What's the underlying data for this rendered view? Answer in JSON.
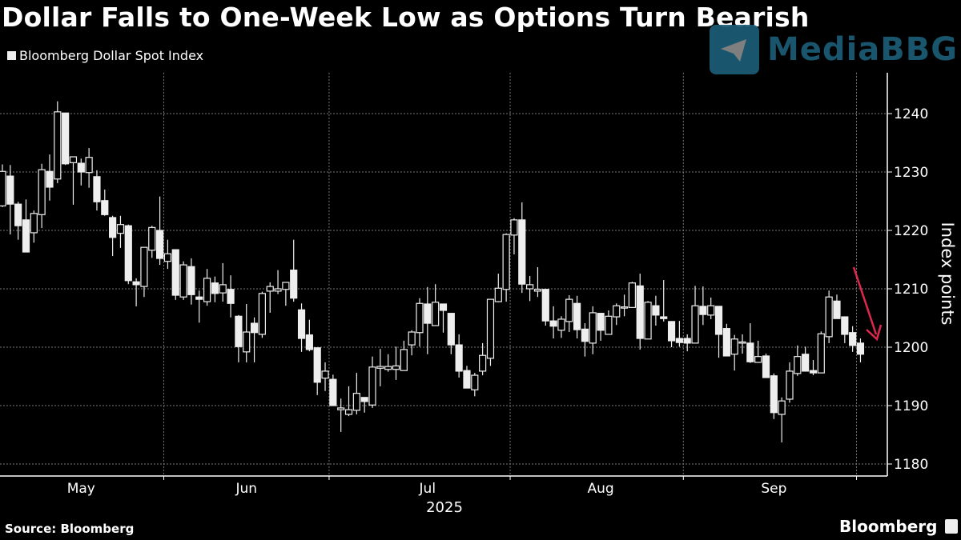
{
  "header": {
    "title": "Dollar Falls to One-Week Low as Options Turn Bearish",
    "legend_label": "Bloomberg Dollar Spot Index"
  },
  "footer": {
    "source": "Source: Bloomberg",
    "brand": "Bloomberg"
  },
  "watermark": "MediaBBG",
  "colors": {
    "background": "#000000",
    "candle": "#eeeeee",
    "arrow": "#e0284f",
    "watermark": "#1c5e78"
  },
  "chart_data": {
    "type": "candlestick",
    "title": "Dollar Falls to One-Week Low as Options Turn Bearish",
    "series_name": "Bloomberg Dollar Spot Index",
    "ylabel": "Index points",
    "xlabel": "2025",
    "ylim": [
      1178,
      1247
    ],
    "yticks": [
      1180,
      1190,
      1200,
      1210,
      1220,
      1230,
      1240
    ],
    "month_labels": [
      {
        "label": "May",
        "index": 10
      },
      {
        "label": "Jun",
        "index": 31
      },
      {
        "label": "Jul",
        "index": 54
      },
      {
        "label": "Aug",
        "index": 76
      },
      {
        "label": "Sep",
        "index": 98
      }
    ],
    "month_boundaries": [
      21,
      42,
      65,
      87,
      109
    ],
    "year_label": "2025",
    "grid": true,
    "annotation": "red arrow pointing to latest candle",
    "ohlc_fields": [
      "open",
      "high",
      "low",
      "close"
    ],
    "candles": [
      [
        1224.2,
        1231.3,
        1224.0,
        1230.1
      ],
      [
        1229.3,
        1231.2,
        1219.3,
        1224.5
      ],
      [
        1224.5,
        1224.9,
        1218.4,
        1220.8
      ],
      [
        1221.8,
        1225.3,
        1216.3,
        1216.3
      ],
      [
        1219.6,
        1223.4,
        1217.9,
        1222.9
      ],
      [
        1222.7,
        1231.4,
        1220.4,
        1230.4
      ],
      [
        1230.1,
        1233.0,
        1225.1,
        1227.4
      ],
      [
        1228.8,
        1242.1,
        1228.1,
        1240.3
      ],
      [
        1240.1,
        1240.1,
        1231.2,
        1231.4
      ],
      [
        1231.6,
        1232.6,
        1224.4,
        1232.6
      ],
      [
        1231.5,
        1232.3,
        1227.7,
        1230.0
      ],
      [
        1229.9,
        1234.1,
        1227.3,
        1232.5
      ],
      [
        1229.2,
        1230.3,
        1223.4,
        1224.9
      ],
      [
        1225.1,
        1227.0,
        1222.5,
        1222.7
      ],
      [
        1222.2,
        1222.5,
        1215.6,
        1218.8
      ],
      [
        1219.5,
        1222.5,
        1217.0,
        1221.0
      ],
      [
        1220.8,
        1221.0,
        1210.8,
        1211.4
      ],
      [
        1211.2,
        1211.8,
        1207.0,
        1210.7
      ],
      [
        1210.4,
        1217.1,
        1208.6,
        1217.1
      ],
      [
        1216.6,
        1220.8,
        1215.3,
        1220.5
      ],
      [
        1220.0,
        1225.8,
        1214.1,
        1215.2
      ],
      [
        1214.7,
        1218.4,
        1213.4,
        1216.0
      ],
      [
        1216.7,
        1216.7,
        1208.1,
        1208.9
      ],
      [
        1208.6,
        1214.7,
        1208.1,
        1214.1
      ],
      [
        1213.8,
        1215.2,
        1207.3,
        1209.0
      ],
      [
        1208.6,
        1209.7,
        1204.2,
        1208.2
      ],
      [
        1207.8,
        1213.4,
        1207.1,
        1211.8
      ],
      [
        1211.0,
        1212.1,
        1207.7,
        1209.2
      ],
      [
        1209.3,
        1214.4,
        1207.8,
        1210.7
      ],
      [
        1209.9,
        1212.3,
        1205.1,
        1207.5
      ],
      [
        1205.3,
        1205.5,
        1197.4,
        1200.1
      ],
      [
        1199.2,
        1207.4,
        1197.4,
        1202.6
      ],
      [
        1204.1,
        1205.1,
        1197.4,
        1202.5
      ],
      [
        1202.2,
        1209.5,
        1201.6,
        1209.2
      ],
      [
        1209.6,
        1211.1,
        1205.9,
        1210.4
      ],
      [
        1209.6,
        1213.2,
        1209.1,
        1210.0
      ],
      [
        1209.9,
        1211.1,
        1207.1,
        1211.1
      ],
      [
        1213.2,
        1218.4,
        1207.8,
        1208.4
      ],
      [
        1206.4,
        1207.5,
        1199.2,
        1201.5
      ],
      [
        1202.1,
        1204.7,
        1199.3,
        1199.6
      ],
      [
        1199.9,
        1199.9,
        1191.8,
        1194.0
      ],
      [
        1194.7,
        1197.4,
        1192.5,
        1195.9
      ],
      [
        1194.5,
        1195.3,
        1190.0,
        1190.0
      ],
      [
        1189.3,
        1191.2,
        1185.5,
        1189.6
      ],
      [
        1188.5,
        1193.3,
        1188.2,
        1189.3
      ],
      [
        1189.2,
        1195.6,
        1188.5,
        1192.1
      ],
      [
        1191.4,
        1191.4,
        1188.8,
        1190.7
      ],
      [
        1190.1,
        1198.4,
        1189.6,
        1196.6
      ],
      [
        1196.4,
        1199.7,
        1193.3,
        1196.7
      ],
      [
        1196.2,
        1198.8,
        1195.8,
        1196.7
      ],
      [
        1196.2,
        1200.1,
        1194.4,
        1196.8
      ],
      [
        1196.0,
        1201.1,
        1196.0,
        1199.6
      ],
      [
        1200.4,
        1202.9,
        1198.6,
        1202.6
      ],
      [
        1202.5,
        1208.4,
        1200.1,
        1207.5
      ],
      [
        1207.4,
        1210.3,
        1198.8,
        1204.1
      ],
      [
        1203.7,
        1210.8,
        1203.7,
        1207.7
      ],
      [
        1207.4,
        1207.4,
        1202.5,
        1206.3
      ],
      [
        1205.8,
        1205.8,
        1198.8,
        1200.4
      ],
      [
        1200.4,
        1202.2,
        1194.8,
        1195.9
      ],
      [
        1196.0,
        1196.8,
        1193.0,
        1193.0
      ],
      [
        1192.7,
        1195.6,
        1191.6,
        1195.2
      ],
      [
        1195.9,
        1200.7,
        1195.2,
        1198.6
      ],
      [
        1198.1,
        1208.2,
        1196.8,
        1208.2
      ],
      [
        1207.8,
        1212.6,
        1207.7,
        1210.1
      ],
      [
        1209.9,
        1219.5,
        1207.8,
        1219.3
      ],
      [
        1219.2,
        1222.1,
        1215.9,
        1221.8
      ],
      [
        1221.8,
        1224.8,
        1209.3,
        1210.8
      ],
      [
        1210.0,
        1212.2,
        1207.9,
        1210.7
      ],
      [
        1209.6,
        1213.7,
        1208.6,
        1209.9
      ],
      [
        1209.9,
        1209.9,
        1203.7,
        1204.5
      ],
      [
        1204.5,
        1207.0,
        1201.5,
        1203.6
      ],
      [
        1202.9,
        1205.3,
        1201.6,
        1204.8
      ],
      [
        1204.4,
        1208.9,
        1202.6,
        1208.2
      ],
      [
        1207.5,
        1208.8,
        1201.5,
        1203.0
      ],
      [
        1203.1,
        1204.1,
        1198.4,
        1201.0
      ],
      [
        1200.7,
        1207.0,
        1198.8,
        1205.9
      ],
      [
        1205.8,
        1205.8,
        1201.1,
        1202.9
      ],
      [
        1202.2,
        1206.3,
        1202.2,
        1205.3
      ],
      [
        1205.2,
        1207.5,
        1203.8,
        1207.1
      ],
      [
        1206.8,
        1209.0,
        1205.3,
        1206.9
      ],
      [
        1206.8,
        1211.2,
        1206.8,
        1211.0
      ],
      [
        1210.5,
        1212.6,
        1199.6,
        1201.5
      ],
      [
        1201.4,
        1207.9,
        1201.4,
        1207.7
      ],
      [
        1207.1,
        1208.8,
        1203.7,
        1205.5
      ],
      [
        1205.2,
        1211.5,
        1204.4,
        1204.9
      ],
      [
        1204.4,
        1204.4,
        1200.0,
        1201.1
      ],
      [
        1201.5,
        1204.5,
        1200.1,
        1200.8
      ],
      [
        1201.5,
        1202.2,
        1199.3,
        1200.7
      ],
      [
        1200.7,
        1210.5,
        1200.7,
        1207.1
      ],
      [
        1207.0,
        1210.4,
        1203.8,
        1205.6
      ],
      [
        1205.5,
        1208.5,
        1204.8,
        1207.1
      ],
      [
        1207.0,
        1207.0,
        1198.2,
        1202.2
      ],
      [
        1203.2,
        1204.0,
        1198.5,
        1198.5
      ],
      [
        1198.8,
        1202.1,
        1196.0,
        1201.4
      ],
      [
        1200.7,
        1202.2,
        1198.9,
        1200.9
      ],
      [
        1200.7,
        1204.1,
        1197.3,
        1197.5
      ],
      [
        1197.4,
        1201.1,
        1197.4,
        1198.4
      ],
      [
        1198.5,
        1198.9,
        1194.8,
        1194.8
      ],
      [
        1195.1,
        1195.5,
        1187.7,
        1188.8
      ],
      [
        1188.5,
        1191.4,
        1183.7,
        1190.8
      ],
      [
        1191.1,
        1197.4,
        1190.5,
        1195.9
      ],
      [
        1195.5,
        1200.3,
        1195.1,
        1198.4
      ],
      [
        1198.8,
        1200.1,
        1195.9,
        1195.9
      ],
      [
        1196.0,
        1197.8,
        1195.2,
        1195.6
      ],
      [
        1195.6,
        1202.7,
        1195.6,
        1202.3
      ],
      [
        1201.8,
        1209.7,
        1200.7,
        1208.6
      ],
      [
        1207.9,
        1209.0,
        1204.9,
        1204.9
      ],
      [
        1205.2,
        1205.2,
        1200.7,
        1202.2
      ],
      [
        1202.5,
        1203.6,
        1199.2,
        1200.3
      ],
      [
        1200.7,
        1201.5,
        1197.4,
        1198.8
      ]
    ]
  }
}
